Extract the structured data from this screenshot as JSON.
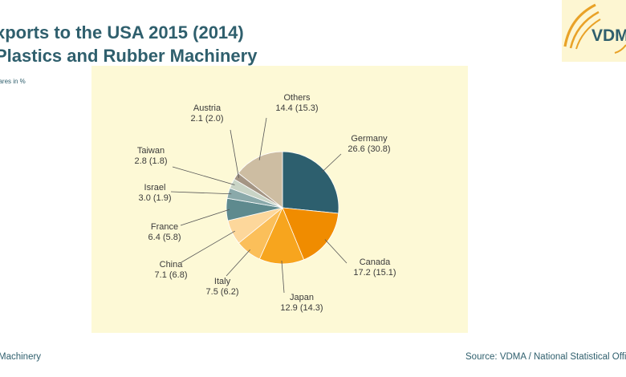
{
  "header": {
    "title_line1": "xports to the USA 2015 (2014)",
    "title_line2": "Plastics and Rubber Machinery",
    "subtitle": "hares in %"
  },
  "logo": {
    "text": "VDM",
    "icon": "vdma-logo-icon",
    "color": "#e9a227",
    "background": "#fdf6d2"
  },
  "footer": {
    "left": "Machinery",
    "right": "Source: VDMA / National Statistical Offic"
  },
  "chart_data": {
    "type": "pie",
    "title": "xports to the USA 2015 (2014) Plastics and Rubber Machinery",
    "unit": "hares in %",
    "start": "12 o'clock",
    "direction": "clockwise",
    "slices": [
      {
        "name": "Germany",
        "value": 26.6,
        "prev": 30.8,
        "label_value": "26.6 (30.8)",
        "color": "#2d5f6e"
      },
      {
        "name": "Canada",
        "value": 17.2,
        "prev": 15.1,
        "label_value": "17.2 (15.1)",
        "color": "#f08c00"
      },
      {
        "name": "Japan",
        "value": 12.9,
        "prev": 14.3,
        "label_value": "12.9 (14.3)",
        "color": "#f7a51e"
      },
      {
        "name": "Italy",
        "value": 7.5,
        "prev": 6.2,
        "label_value": "7.5 (6.2)",
        "color": "#fbbf5a"
      },
      {
        "name": "China",
        "value": 7.1,
        "prev": 6.8,
        "label_value": "7.1 (6.8)",
        "color": "#fdd79b"
      },
      {
        "name": "France",
        "value": 6.4,
        "prev": 5.8,
        "label_value": "6.4 (5.8)",
        "color": "#5e8a8e"
      },
      {
        "name": "Israel",
        "value": 3.0,
        "prev": 1.9,
        "label_value": "3.0 (1.9)",
        "color": "#8aa9aa"
      },
      {
        "name": "Taiwan",
        "value": 2.8,
        "prev": 1.8,
        "label_value": "2.8 (1.8)",
        "color": "#c9d4c6"
      },
      {
        "name": "Austria",
        "value": 2.1,
        "prev": 2.0,
        "label_value": "2.1 (2.0)",
        "color": "#a49584"
      },
      {
        "name": "Others",
        "value": 14.4,
        "prev": 15.3,
        "label_value": "14.4 (15.3)",
        "color": "#cdbda2"
      }
    ]
  }
}
